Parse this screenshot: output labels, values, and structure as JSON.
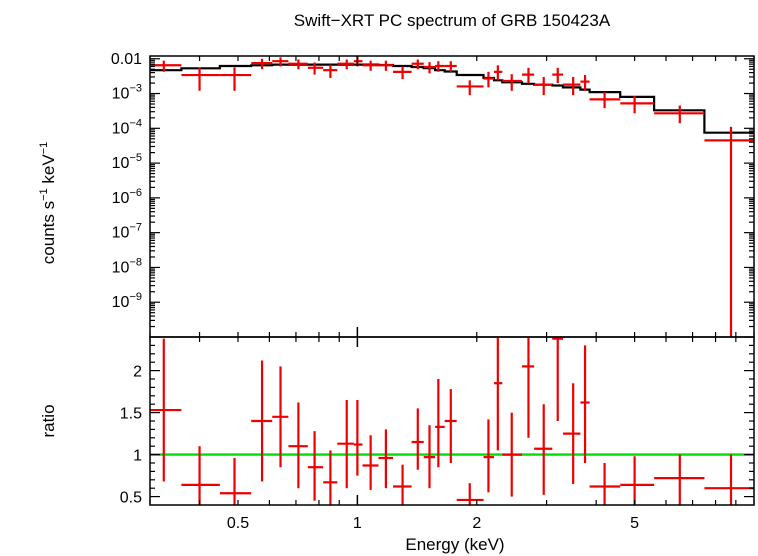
{
  "title": "Swift−XRT PC spectrum of GRB 150423A",
  "xlabel": "Energy (keV)",
  "chart_data": [
    {
      "type": "scatter",
      "name": "spectrum",
      "ylabel_main": "counts s",
      "ylabel_sup1": "−1",
      "ylabel_mid": " keV",
      "ylabel_sup2": "−1",
      "xscale": "log",
      "yscale": "log",
      "xlim": [
        0.3,
        10
      ],
      "ylim": [
        1e-10,
        0.012
      ],
      "y_ticks": [
        {
          "value": 0.01,
          "mant": "0.01",
          "exp": ""
        },
        {
          "value": 0.001,
          "mant": "10",
          "exp": "−3"
        },
        {
          "value": 0.0001,
          "mant": "10",
          "exp": "−4"
        },
        {
          "value": 1e-05,
          "mant": "10",
          "exp": "−5"
        },
        {
          "value": 1e-06,
          "mant": "10",
          "exp": "−6"
        },
        {
          "value": 1e-07,
          "mant": "10",
          "exp": "−7"
        },
        {
          "value": 1e-08,
          "mant": "10",
          "exp": "−8"
        },
        {
          "value": 1e-09,
          "mant": "10",
          "exp": "−9"
        }
      ],
      "data_color": "#ee0000",
      "model_color": "#000000",
      "points": [
        {
          "x": 0.325,
          "xlo": 0.3,
          "xhi": 0.36,
          "y": 0.0065,
          "ylo": 0.0042,
          "yhi": 0.0088
        },
        {
          "x": 0.4,
          "xlo": 0.36,
          "xhi": 0.45,
          "y": 0.0034,
          "ylo": 0.0012,
          "yhi": 0.0056
        },
        {
          "x": 0.49,
          "xlo": 0.45,
          "xhi": 0.54,
          "y": 0.0034,
          "ylo": 0.0012,
          "yhi": 0.0056
        },
        {
          "x": 0.575,
          "xlo": 0.54,
          "xhi": 0.61,
          "y": 0.0075,
          "ylo": 0.005,
          "yhi": 0.01
        },
        {
          "x": 0.64,
          "xlo": 0.61,
          "xhi": 0.67,
          "y": 0.0085,
          "ylo": 0.006,
          "yhi": 0.011
        },
        {
          "x": 0.71,
          "xlo": 0.67,
          "xhi": 0.75,
          "y": 0.0072,
          "ylo": 0.005,
          "yhi": 0.0095
        },
        {
          "x": 0.78,
          "xlo": 0.75,
          "xhi": 0.82,
          "y": 0.0055,
          "ylo": 0.0035,
          "yhi": 0.0078
        },
        {
          "x": 0.855,
          "xlo": 0.82,
          "xhi": 0.89,
          "y": 0.0047,
          "ylo": 0.0028,
          "yhi": 0.0068
        },
        {
          "x": 0.94,
          "xlo": 0.89,
          "xhi": 0.98,
          "y": 0.0072,
          "ylo": 0.005,
          "yhi": 0.0095
        },
        {
          "x": 1.0,
          "xlo": 0.98,
          "xhi": 1.03,
          "y": 0.0085,
          "ylo": 0.006,
          "yhi": 0.0115
        },
        {
          "x": 1.08,
          "xlo": 1.03,
          "xhi": 1.13,
          "y": 0.0065,
          "ylo": 0.0045,
          "yhi": 0.0088
        },
        {
          "x": 1.18,
          "xlo": 1.13,
          "xhi": 1.23,
          "y": 0.0065,
          "ylo": 0.0045,
          "yhi": 0.0088
        },
        {
          "x": 1.3,
          "xlo": 1.23,
          "xhi": 1.37,
          "y": 0.0042,
          "ylo": 0.0026,
          "yhi": 0.006
        },
        {
          "x": 1.42,
          "xlo": 1.37,
          "xhi": 1.47,
          "y": 0.0072,
          "ylo": 0.005,
          "yhi": 0.0095
        },
        {
          "x": 1.52,
          "xlo": 1.47,
          "xhi": 1.57,
          "y": 0.0058,
          "ylo": 0.0038,
          "yhi": 0.008
        },
        {
          "x": 1.6,
          "xlo": 1.57,
          "xhi": 1.66,
          "y": 0.0062,
          "ylo": 0.0042,
          "yhi": 0.0085
        },
        {
          "x": 1.72,
          "xlo": 1.66,
          "xhi": 1.78,
          "y": 0.0062,
          "ylo": 0.0042,
          "yhi": 0.0085
        },
        {
          "x": 1.92,
          "xlo": 1.78,
          "xhi": 2.08,
          "y": 0.0016,
          "ylo": 0.0009,
          "yhi": 0.0024
        },
        {
          "x": 2.14,
          "xlo": 2.08,
          "xhi": 2.21,
          "y": 0.0027,
          "ylo": 0.0015,
          "yhi": 0.0042
        },
        {
          "x": 2.26,
          "xlo": 2.21,
          "xhi": 2.32,
          "y": 0.0042,
          "ylo": 0.0024,
          "yhi": 0.0065
        },
        {
          "x": 2.45,
          "xlo": 2.32,
          "xhi": 2.6,
          "y": 0.0023,
          "ylo": 0.0012,
          "yhi": 0.0036
        },
        {
          "x": 2.7,
          "xlo": 2.6,
          "xhi": 2.79,
          "y": 0.0035,
          "ylo": 0.002,
          "yhi": 0.0055
        },
        {
          "x": 2.95,
          "xlo": 2.79,
          "xhi": 3.1,
          "y": 0.0018,
          "ylo": 0.0009,
          "yhi": 0.003
        },
        {
          "x": 3.2,
          "xlo": 3.1,
          "xhi": 3.3,
          "y": 0.0035,
          "ylo": 0.002,
          "yhi": 0.0055
        },
        {
          "x": 3.5,
          "xlo": 3.3,
          "xhi": 3.65,
          "y": 0.0018,
          "ylo": 0.0009,
          "yhi": 0.003
        },
        {
          "x": 3.75,
          "xlo": 3.65,
          "xhi": 3.85,
          "y": 0.0022,
          "ylo": 0.0012,
          "yhi": 0.0034
        },
        {
          "x": 4.2,
          "xlo": 3.85,
          "xhi": 4.6,
          "y": 0.00068,
          "ylo": 0.00038,
          "yhi": 0.0011
        },
        {
          "x": 5.0,
          "xlo": 4.6,
          "xhi": 5.6,
          "y": 0.00052,
          "ylo": 0.00027,
          "yhi": 0.00085
        },
        {
          "x": 6.5,
          "xlo": 5.6,
          "xhi": 7.5,
          "y": 0.00027,
          "ylo": 0.00014,
          "yhi": 0.00045
        },
        {
          "x": 8.75,
          "xlo": 7.5,
          "xhi": 10.0,
          "y": 4.5e-05,
          "ylo": 1e-10,
          "yhi": 0.00011
        }
      ],
      "model_steps": [
        {
          "x0": 0.3,
          "x1": 0.36,
          "y": 0.0047
        },
        {
          "x0": 0.36,
          "x1": 0.45,
          "y": 0.0053
        },
        {
          "x0": 0.45,
          "x1": 0.54,
          "y": 0.0062
        },
        {
          "x0": 0.54,
          "x1": 0.61,
          "y": 0.0065
        },
        {
          "x0": 0.61,
          "x1": 0.67,
          "y": 0.0068
        },
        {
          "x0": 0.67,
          "x1": 0.75,
          "y": 0.0068
        },
        {
          "x0": 0.75,
          "x1": 0.82,
          "y": 0.0068
        },
        {
          "x0": 0.82,
          "x1": 0.89,
          "y": 0.0068
        },
        {
          "x0": 0.89,
          "x1": 0.98,
          "y": 0.0068
        },
        {
          "x0": 0.98,
          "x1": 1.03,
          "y": 0.0068
        },
        {
          "x0": 1.03,
          "x1": 1.13,
          "y": 0.0068
        },
        {
          "x0": 1.13,
          "x1": 1.23,
          "y": 0.0066
        },
        {
          "x0": 1.23,
          "x1": 1.37,
          "y": 0.0062
        },
        {
          "x0": 1.37,
          "x1": 1.47,
          "y": 0.0058
        },
        {
          "x0": 1.47,
          "x1": 1.57,
          "y": 0.0054
        },
        {
          "x0": 1.57,
          "x1": 1.66,
          "y": 0.0047
        },
        {
          "x0": 1.66,
          "x1": 1.78,
          "y": 0.0043
        },
        {
          "x0": 1.78,
          "x1": 2.08,
          "y": 0.0034
        },
        {
          "x0": 2.08,
          "x1": 2.21,
          "y": 0.0028
        },
        {
          "x0": 2.21,
          "x1": 2.32,
          "y": 0.0024
        },
        {
          "x0": 2.32,
          "x1": 2.6,
          "y": 0.0021
        },
        {
          "x0": 2.6,
          "x1": 2.79,
          "y": 0.0019
        },
        {
          "x0": 2.79,
          "x1": 3.1,
          "y": 0.0018
        },
        {
          "x0": 3.1,
          "x1": 3.3,
          "y": 0.0017
        },
        {
          "x0": 3.3,
          "x1": 3.65,
          "y": 0.0015
        },
        {
          "x0": 3.65,
          "x1": 3.85,
          "y": 0.0013
        },
        {
          "x0": 3.85,
          "x1": 4.6,
          "y": 0.0011
        },
        {
          "x0": 4.6,
          "x1": 5.6,
          "y": 0.0008
        },
        {
          "x0": 5.6,
          "x1": 7.5,
          "y": 0.00033
        },
        {
          "x0": 7.5,
          "x1": 10.0,
          "y": 7.5e-05
        }
      ]
    },
    {
      "type": "scatter",
      "name": "ratio",
      "ylabel": "ratio",
      "xscale": "log",
      "yscale": "linear",
      "xlim": [
        0.3,
        10
      ],
      "ylim": [
        0.4,
        2.4
      ],
      "y_tick_labels": [
        {
          "value": 0.5,
          "label": "0.5"
        },
        {
          "value": 1,
          "label": "1"
        },
        {
          "value": 1.5,
          "label": "1.5"
        },
        {
          "value": 2,
          "label": "2"
        }
      ],
      "x_tick_labels": [
        {
          "value": 0.5,
          "label": "0.5"
        },
        {
          "value": 1,
          "label": "1"
        },
        {
          "value": 2,
          "label": "2"
        },
        {
          "value": 5,
          "label": "5"
        }
      ],
      "reference_line": 1,
      "reference_color": "#00dd00",
      "data_color": "#ee0000",
      "points": [
        {
          "x": 0.325,
          "xlo": 0.3,
          "xhi": 0.36,
          "y": 1.53,
          "ylo": 0.68,
          "yhi": 2.38
        },
        {
          "x": 0.4,
          "xlo": 0.36,
          "xhi": 0.45,
          "y": 0.64,
          "ylo": 0.18,
          "yhi": 1.1
        },
        {
          "x": 0.49,
          "xlo": 0.45,
          "xhi": 0.54,
          "y": 0.54,
          "ylo": 0.18,
          "yhi": 0.96
        },
        {
          "x": 0.575,
          "xlo": 0.54,
          "xhi": 0.61,
          "y": 1.4,
          "ylo": 0.68,
          "yhi": 2.12
        },
        {
          "x": 0.64,
          "xlo": 0.61,
          "xhi": 0.67,
          "y": 1.45,
          "ylo": 0.85,
          "yhi": 2.05
        },
        {
          "x": 0.71,
          "xlo": 0.67,
          "xhi": 0.75,
          "y": 1.1,
          "ylo": 0.6,
          "yhi": 1.62
        },
        {
          "x": 0.78,
          "xlo": 0.75,
          "xhi": 0.82,
          "y": 0.85,
          "ylo": 0.45,
          "yhi": 1.28
        },
        {
          "x": 0.855,
          "xlo": 0.82,
          "xhi": 0.89,
          "y": 0.67,
          "ylo": 0.3,
          "yhi": 1.05
        },
        {
          "x": 0.94,
          "xlo": 0.89,
          "xhi": 0.98,
          "y": 1.13,
          "ylo": 0.6,
          "yhi": 1.65
        },
        {
          "x": 1.0,
          "xlo": 0.98,
          "xhi": 1.03,
          "y": 1.12,
          "ylo": 0.75,
          "yhi": 1.65
        },
        {
          "x": 1.08,
          "xlo": 1.03,
          "xhi": 1.13,
          "y": 0.87,
          "ylo": 0.58,
          "yhi": 1.23
        },
        {
          "x": 1.18,
          "xlo": 1.13,
          "xhi": 1.23,
          "y": 0.96,
          "ylo": 0.6,
          "yhi": 1.3
        },
        {
          "x": 1.3,
          "xlo": 1.23,
          "xhi": 1.37,
          "y": 0.62,
          "ylo": 0.38,
          "yhi": 0.88
        },
        {
          "x": 1.42,
          "xlo": 1.37,
          "xhi": 1.47,
          "y": 1.15,
          "ylo": 0.82,
          "yhi": 1.55
        },
        {
          "x": 1.52,
          "xlo": 1.47,
          "xhi": 1.57,
          "y": 0.97,
          "ylo": 0.6,
          "yhi": 1.35
        },
        {
          "x": 1.6,
          "xlo": 1.57,
          "xhi": 1.66,
          "y": 1.33,
          "ylo": 0.85,
          "yhi": 1.9
        },
        {
          "x": 1.72,
          "xlo": 1.66,
          "xhi": 1.78,
          "y": 1.4,
          "ylo": 0.9,
          "yhi": 1.78
        },
        {
          "x": 1.92,
          "xlo": 1.78,
          "xhi": 2.08,
          "y": 0.46,
          "ylo": 0.3,
          "yhi": 0.66
        },
        {
          "x": 2.14,
          "xlo": 2.08,
          "xhi": 2.21,
          "y": 0.97,
          "ylo": 0.55,
          "yhi": 1.42
        },
        {
          "x": 2.26,
          "xlo": 2.21,
          "xhi": 2.32,
          "y": 1.85,
          "ylo": 1.05,
          "yhi": 2.4
        },
        {
          "x": 2.45,
          "xlo": 2.32,
          "xhi": 2.6,
          "y": 1.0,
          "ylo": 0.5,
          "yhi": 1.5
        },
        {
          "x": 2.7,
          "xlo": 2.6,
          "xhi": 2.79,
          "y": 2.05,
          "ylo": 1.2,
          "yhi": 2.4
        },
        {
          "x": 2.95,
          "xlo": 2.79,
          "xhi": 3.1,
          "y": 1.07,
          "ylo": 0.52,
          "yhi": 1.6
        },
        {
          "x": 3.2,
          "xlo": 3.1,
          "xhi": 3.3,
          "y": 2.38,
          "ylo": 1.4,
          "yhi": 2.4
        },
        {
          "x": 3.5,
          "xlo": 3.3,
          "xhi": 3.65,
          "y": 1.25,
          "ylo": 0.65,
          "yhi": 1.85
        },
        {
          "x": 3.75,
          "xlo": 3.65,
          "xhi": 3.85,
          "y": 1.62,
          "ylo": 0.9,
          "yhi": 2.3
        },
        {
          "x": 4.2,
          "xlo": 3.85,
          "xhi": 4.6,
          "y": 0.62,
          "ylo": 0.35,
          "yhi": 0.9
        },
        {
          "x": 5.0,
          "xlo": 4.6,
          "xhi": 5.6,
          "y": 0.64,
          "ylo": 0.35,
          "yhi": 0.98
        },
        {
          "x": 6.5,
          "xlo": 5.6,
          "xhi": 7.5,
          "y": 0.72,
          "ylo": 0.4,
          "yhi": 1.0
        },
        {
          "x": 8.75,
          "xlo": 7.5,
          "xhi": 10.0,
          "y": 0.6,
          "ylo": 0.4,
          "yhi": 1.0
        }
      ]
    }
  ]
}
